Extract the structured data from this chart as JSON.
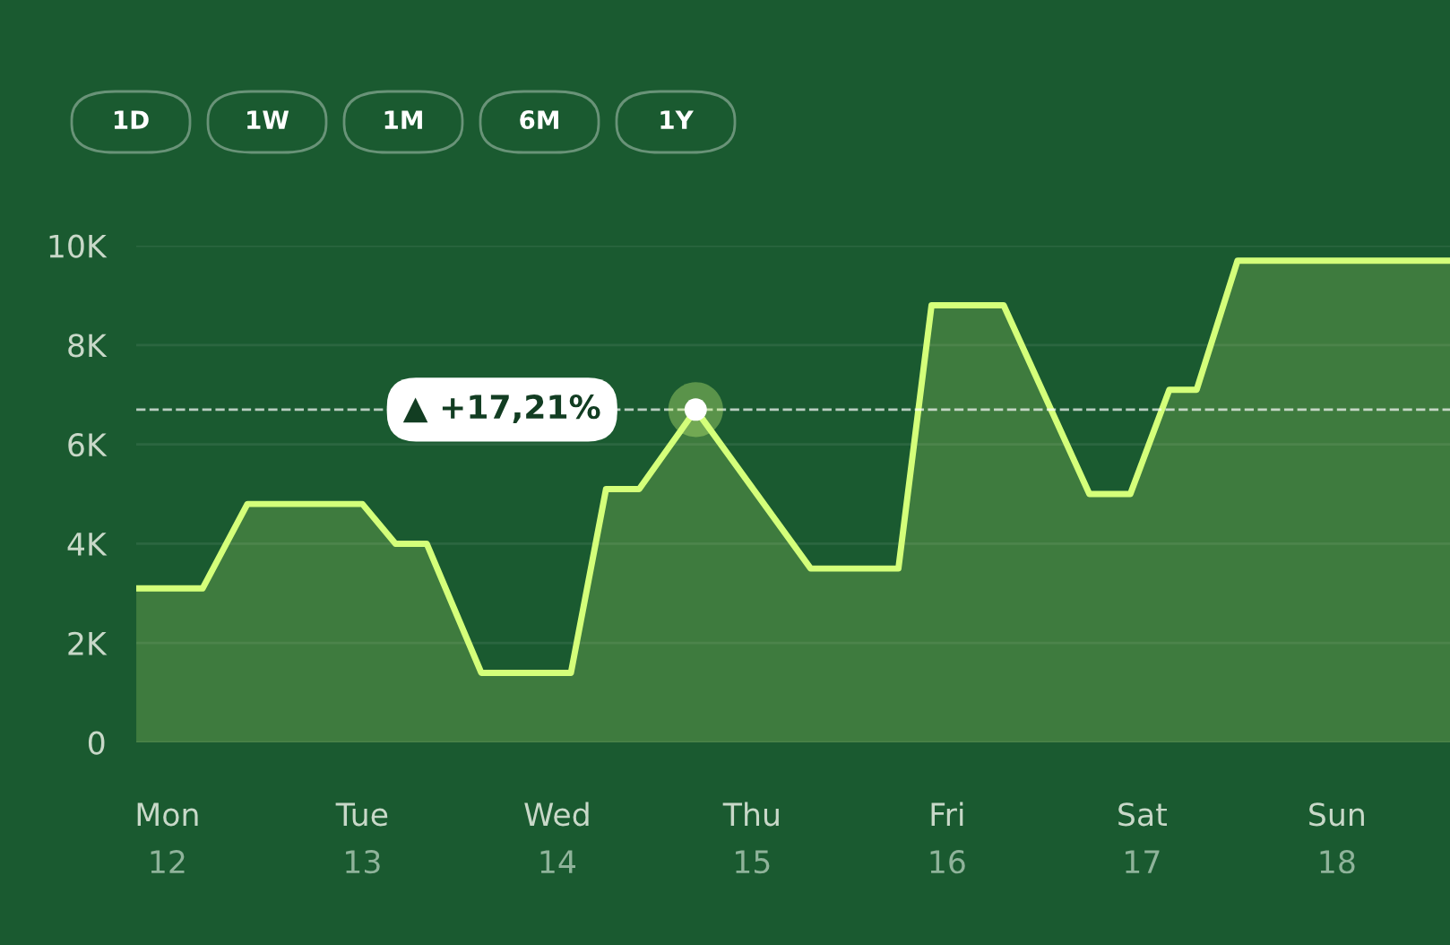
{
  "chart_data": {
    "type": "area",
    "color": "#d4ff7a",
    "x": [
      11.84,
      12.18,
      12.41,
      13.0,
      13.17,
      13.33,
      13.61,
      14.07,
      14.25,
      14.42,
      14.71,
      15.3,
      15.75,
      15.92,
      16.29,
      16.73,
      16.94,
      17.14,
      17.28,
      17.49,
      18.58
    ],
    "values": [
      3100,
      3100,
      4800,
      4800,
      4000,
      4000,
      1400,
      1400,
      5100,
      5100,
      6700,
      3500,
      3500,
      8800,
      8800,
      5000,
      5000,
      7100,
      7100,
      9700,
      9700
    ],
    "xlim": [
      11.84,
      18.58
    ],
    "xticks": [
      12,
      13,
      14,
      15,
      16,
      17,
      18
    ],
    "ylim": [
      0,
      10000
    ],
    "yticks": [
      0,
      {
        "value": 2000,
        "label": "2K"
      },
      {
        "value": 4000,
        "label": "4K"
      },
      {
        "value": 6000,
        "label": "6K"
      },
      {
        "value": 8000,
        "label": "8K"
      },
      {
        "value": 10000,
        "label": "10K"
      }
    ],
    "grid": "y",
    "line_style": "solid",
    "ref_lines": [
      {
        "axis": "y",
        "value": 6700,
        "color": "#ffffff",
        "line_style": "dashed"
      }
    ],
    "annotations": [
      {
        "text": "▲ +17,21%",
        "x": 14.71,
        "y": 6700
      },
      "1D",
      "1W",
      "1M",
      "6M",
      "1Y",
      "Mon",
      "Tue",
      "Wed",
      "Thu",
      "Fri",
      "Sat",
      "Sun"
    ]
  }
}
